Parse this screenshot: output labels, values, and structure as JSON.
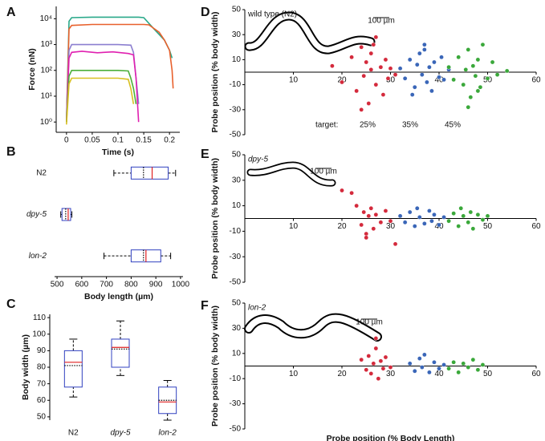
{
  "chart_data": [
    {
      "type": "line",
      "panel": "A",
      "xlabel": "Time (s)",
      "ylabel": "Force (nN)",
      "log_y": true,
      "xlim": [
        -0.02,
        0.22
      ],
      "xticks": [
        0,
        0.05,
        0.1,
        0.15,
        0.2
      ],
      "ylim": [
        0.4,
        30000
      ],
      "yticks": [
        {
          "value": 1,
          "label": "10⁰"
        },
        {
          "value": 10,
          "label": "10¹"
        },
        {
          "value": 100,
          "label": "10²"
        },
        {
          "value": 1000,
          "label": "10³"
        },
        {
          "value": 10000,
          "label": "10⁴"
        }
      ],
      "series": [
        {
          "color": "#2aa98a",
          "x": [
            0,
            0.005,
            0.01,
            0.05,
            0.1,
            0.14,
            0.15,
            0.17,
            0.19,
            0.2,
            0.205
          ],
          "values": [
            1,
            8000,
            11000,
            11500,
            11500,
            11500,
            11000,
            4000,
            1500,
            600,
            300
          ]
        },
        {
          "color": "#e8602c",
          "x": [
            0,
            0.005,
            0.01,
            0.05,
            0.1,
            0.15,
            0.16,
            0.18,
            0.19,
            0.2,
            0.205,
            0.207
          ],
          "values": [
            1,
            4000,
            5500,
            6000,
            6000,
            6000,
            5800,
            3000,
            1500,
            600,
            100,
            20
          ]
        },
        {
          "color": "#8c7fd0",
          "x": [
            0,
            0.005,
            0.01,
            0.05,
            0.1,
            0.125,
            0.13,
            0.135,
            0.14
          ],
          "values": [
            1,
            600,
            1000,
            1000,
            1000,
            950,
            500,
            50,
            5
          ]
        },
        {
          "color": "#e020b0",
          "x": [
            0,
            0.005,
            0.01,
            0.03,
            0.06,
            0.09,
            0.12,
            0.13,
            0.135,
            0.14
          ],
          "values": [
            1,
            300,
            500,
            550,
            480,
            520,
            450,
            400,
            50,
            1
          ]
        },
        {
          "color": "#4caf3a",
          "x": [
            0,
            0.005,
            0.01,
            0.05,
            0.1,
            0.12,
            0.125,
            0.13,
            0.135
          ],
          "values": [
            1,
            60,
            100,
            100,
            100,
            95,
            50,
            20,
            5
          ]
        },
        {
          "color": "#d8c020",
          "x": [
            0,
            0.005,
            0.01,
            0.05,
            0.1,
            0.12,
            0.125,
            0.13
          ],
          "values": [
            0.8,
            30,
            50,
            50,
            50,
            45,
            20,
            5
          ]
        }
      ]
    },
    {
      "type": "box",
      "orientation": "horizontal",
      "panel": "B",
      "xlabel": "Body length (µm)",
      "xlim": [
        490,
        1010
      ],
      "xticks": [
        500,
        600,
        700,
        800,
        900,
        1000
      ],
      "categories": [
        "N2",
        "dpy-5",
        "lon-2"
      ],
      "whislo": [
        730,
        515,
        690
      ],
      "q1": [
        800,
        520,
        800
      ],
      "med": [
        885,
        545,
        860
      ],
      "q3": [
        950,
        555,
        920
      ],
      "whishi": [
        980,
        560,
        960
      ],
      "mean": [
        850,
        535,
        850
      ],
      "box_color": "#3040c0",
      "median_color": "#e02020"
    },
    {
      "type": "box",
      "orientation": "vertical",
      "panel": "C",
      "ylabel": "Body width (µm)",
      "ylim": [
        48,
        112
      ],
      "yticks": [
        50,
        60,
        70,
        80,
        90,
        100,
        110
      ],
      "categories": [
        "N2",
        "dpy-5",
        "lon-2"
      ],
      "whislo": [
        62,
        75,
        48
      ],
      "q1": [
        68,
        80,
        52
      ],
      "med": [
        83,
        92,
        59
      ],
      "q3": [
        90,
        97,
        68
      ],
      "whishi": [
        97,
        108,
        72
      ],
      "mean": [
        81,
        91,
        60
      ],
      "box_color": "#3040c0",
      "median_color": "#e02020"
    },
    {
      "type": "scatter",
      "panel": "D",
      "annotation": "wild type (N2)",
      "scalebar": "100 µm",
      "ylabel": "Probe position (% body width)",
      "legend_title": "target:",
      "xlim": [
        0,
        60
      ],
      "xticks": [
        10,
        20,
        30,
        40,
        50,
        60
      ],
      "ylim": [
        -50,
        50
      ],
      "yticks": [
        -50,
        -30,
        -10,
        10,
        30,
        50
      ],
      "series": [
        {
          "name": "25%",
          "color": "#d42a3c",
          "x": [
            18,
            20,
            22,
            23,
            24,
            24.5,
            25,
            25.5,
            26,
            26,
            27,
            27,
            28,
            28.5,
            29,
            29.5,
            30,
            31,
            24,
            26.5
          ],
          "values": [
            5,
            -8,
            12,
            -15,
            20,
            -3,
            8,
            -25,
            2,
            15,
            -10,
            28,
            4,
            -18,
            10,
            -5,
            3,
            -2,
            -30,
            22
          ]
        },
        {
          "name": "35%",
          "color": "#3a66b8",
          "x": [
            32,
            33,
            34,
            35,
            35.5,
            36,
            36.5,
            37,
            37.5,
            38,
            38.5,
            39,
            40,
            40.5,
            41,
            42,
            34.5,
            37
          ],
          "values": [
            3,
            -5,
            10,
            -12,
            6,
            15,
            -2,
            22,
            -8,
            4,
            -15,
            8,
            -4,
            12,
            -6,
            2,
            -18,
            18
          ]
        },
        {
          "name": "45%",
          "color": "#3aa83a",
          "x": [
            42,
            43,
            44,
            45,
            45.5,
            46,
            46.5,
            47,
            47.5,
            48,
            48.5,
            49,
            50,
            51,
            52,
            54,
            46,
            48
          ],
          "values": [
            4,
            -6,
            12,
            -10,
            2,
            18,
            -20,
            5,
            -3,
            10,
            -12,
            22,
            -5,
            8,
            -2,
            1,
            -28,
            -15
          ]
        }
      ]
    },
    {
      "type": "scatter",
      "panel": "E",
      "annotation": "dpy-5",
      "scalebar": "100 µm",
      "ylabel": "Probe position (% body width)",
      "xlim": [
        0,
        60
      ],
      "xticks": [
        10,
        20,
        30,
        40,
        50,
        60
      ],
      "ylim": [
        -50,
        50
      ],
      "yticks": [
        -50,
        -30,
        -10,
        10,
        30,
        50
      ],
      "series": [
        {
          "color": "#d42a3c",
          "x": [
            20,
            22,
            23,
            24,
            24.5,
            25,
            25.5,
            26,
            26.5,
            27,
            28,
            29,
            30,
            25,
            31
          ],
          "values": [
            22,
            20,
            10,
            -5,
            5,
            -12,
            2,
            8,
            -8,
            3,
            -3,
            6,
            -2,
            -15,
            -20
          ]
        },
        {
          "color": "#3a66b8",
          "x": [
            32,
            33,
            34,
            35,
            35.5,
            36,
            37,
            38,
            38.5,
            39,
            40,
            41
          ],
          "values": [
            2,
            -3,
            5,
            -6,
            8,
            1,
            -4,
            6,
            -2,
            3,
            -5,
            1
          ]
        },
        {
          "color": "#3aa83a",
          "x": [
            42,
            43,
            44,
            44.5,
            45,
            46,
            46.5,
            47,
            48,
            49,
            50
          ],
          "values": [
            -2,
            4,
            -6,
            8,
            2,
            -3,
            5,
            -8,
            3,
            -1,
            2
          ]
        }
      ]
    },
    {
      "type": "scatter",
      "panel": "F",
      "annotation": "lon-2",
      "scalebar": "100 µm",
      "ylabel": "Probe position (% body width)",
      "xlabel": "Probe position (% Body Length)",
      "xlim": [
        0,
        60
      ],
      "xticks": [
        10,
        20,
        30,
        40,
        50,
        60
      ],
      "ylim": [
        -50,
        50
      ],
      "yticks": [
        -50,
        -30,
        -10,
        10,
        30,
        50
      ],
      "series": [
        {
          "color": "#d42a3c",
          "x": [
            24,
            25,
            25.5,
            26,
            26.5,
            27,
            27.5,
            28,
            28.5,
            29,
            30,
            27
          ],
          "values": [
            5,
            -3,
            8,
            -6,
            2,
            14,
            -10,
            4,
            -2,
            7,
            -1,
            22
          ]
        },
        {
          "color": "#3a66b8",
          "x": [
            34,
            35,
            36,
            36.5,
            37,
            38,
            39,
            40,
            41
          ],
          "values": [
            2,
            -4,
            6,
            -1,
            9,
            -5,
            3,
            -2,
            1
          ]
        },
        {
          "color": "#3aa83a",
          "x": [
            42,
            43,
            44,
            45,
            46,
            47,
            48,
            49
          ],
          "values": [
            -2,
            3,
            -5,
            2,
            -1,
            5,
            -3,
            1
          ]
        }
      ]
    }
  ]
}
